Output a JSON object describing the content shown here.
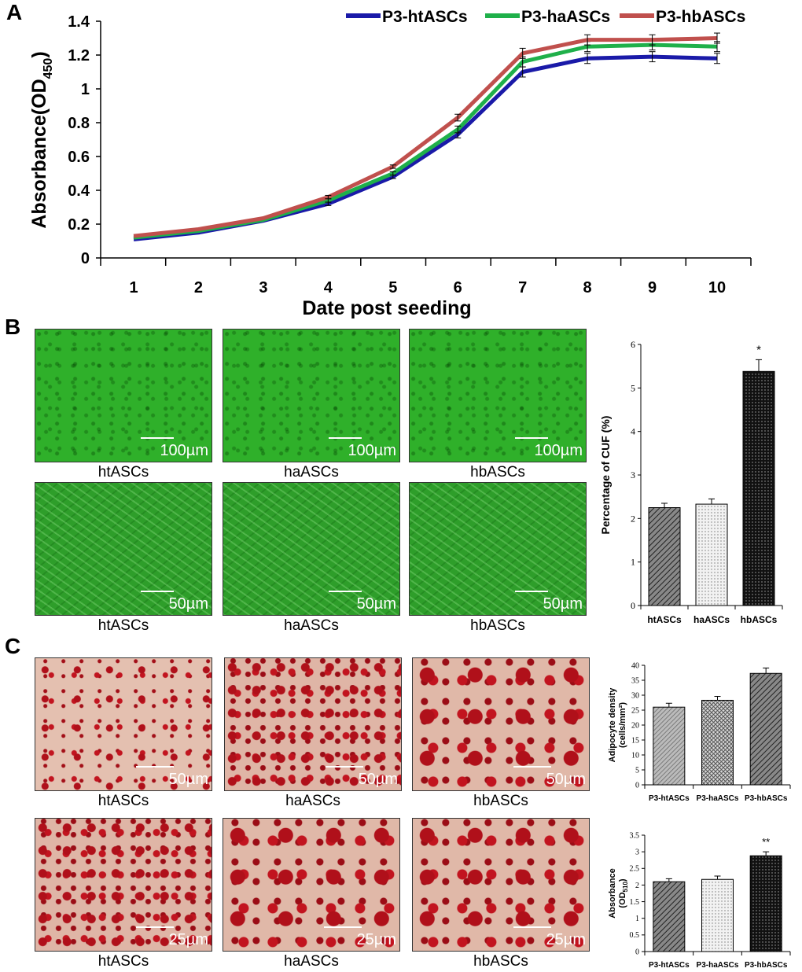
{
  "panel_labels": {
    "a": "A",
    "b": "B",
    "c": "C"
  },
  "chart_data": [
    {
      "type": "line",
      "x": [
        1,
        2,
        3,
        4,
        5,
        6,
        7,
        8,
        9,
        10
      ],
      "xlabel": "Date post seeding",
      "ylabel": "Absorbance(OD450)",
      "ylabel_main": "Absorbance(OD",
      "ylabel_sub": "450",
      "ylabel_close": ")",
      "ylim": [
        0,
        1.4
      ],
      "yticks": [
        "0",
        "0.2",
        "0.4",
        "0.6",
        "0.8",
        "1",
        "1.2",
        "1.4"
      ],
      "legend_position": "top",
      "grid": false,
      "series": [
        {
          "name": "P3-htASCs",
          "color": "#1a1aa8",
          "values": [
            0.11,
            0.15,
            0.22,
            0.32,
            0.48,
            0.73,
            1.1,
            1.18,
            1.19,
            1.18
          ],
          "errors": [
            0,
            0,
            0,
            0.01,
            0.01,
            0.02,
            0.03,
            0.03,
            0.03,
            0.03
          ]
        },
        {
          "name": "P3-haASCs",
          "color": "#1fb04a",
          "values": [
            0.12,
            0.16,
            0.225,
            0.34,
            0.5,
            0.76,
            1.16,
            1.25,
            1.26,
            1.25
          ],
          "errors": [
            0,
            0,
            0,
            0.01,
            0.01,
            0.02,
            0.03,
            0.03,
            0.03,
            0.03
          ]
        },
        {
          "name": "P3-hbASCs",
          "color": "#c0504d",
          "values": [
            0.13,
            0.17,
            0.235,
            0.36,
            0.54,
            0.83,
            1.21,
            1.29,
            1.29,
            1.3
          ],
          "errors": [
            0,
            0,
            0,
            0.01,
            0.01,
            0.02,
            0.03,
            0.03,
            0.03,
            0.03
          ]
        }
      ]
    },
    {
      "type": "bar",
      "categories": [
        "htASCs",
        "haASCs",
        "hbASCs"
      ],
      "values": [
        2.25,
        2.33,
        5.38
      ],
      "errors": [
        0.1,
        0.12,
        0.27
      ],
      "ylabel": "Percentage of CUF (%)",
      "ylim": [
        0,
        6
      ],
      "yticks": [
        "0",
        "1",
        "2",
        "3",
        "4",
        "5",
        "6"
      ],
      "annotations": [
        "",
        "",
        "*"
      ],
      "fills": [
        "hatch-dark",
        "dots-light",
        "dots-black"
      ]
    },
    {
      "type": "bar",
      "categories": [
        "P3-htASCs",
        "P3-haASCs",
        "P3-hbASCs"
      ],
      "values": [
        26,
        28.3,
        37.3
      ],
      "errors": [
        1.3,
        1.3,
        1.8
      ],
      "ylabel": "Adipocyte density (cells/mm²)",
      "ylabel_line1": "Adipocyte density",
      "ylabel_line2": "(cells/mm²)",
      "ylim": [
        0,
        40
      ],
      "yticks": [
        "0",
        "5",
        "10",
        "15",
        "20",
        "25",
        "30",
        "35",
        "40"
      ],
      "annotations": [
        "",
        "",
        ""
      ],
      "fills": [
        "hatch-light",
        "cross",
        "hatch-dark"
      ]
    },
    {
      "type": "bar",
      "categories": [
        "P3-htASCs",
        "P3-haASCs",
        "P3-hbASCs"
      ],
      "values": [
        2.1,
        2.17,
        2.88
      ],
      "errors": [
        0.09,
        0.1,
        0.12
      ],
      "ylabel": "Absorbance (OD510)",
      "ylabel_line1": "Absorbance",
      "ylabel_line2_main": "(OD",
      "ylabel_line2_sub": "510",
      "ylabel_line2_close": ")",
      "ylim": [
        0,
        3.5
      ],
      "yticks": [
        "0",
        "0.5",
        "1",
        "1.5",
        "2",
        "2.5",
        "3",
        "3.5"
      ],
      "annotations": [
        "",
        "",
        "**"
      ],
      "fills": [
        "hatch-dark",
        "dots-light",
        "dots-black"
      ]
    }
  ],
  "micrographs": {
    "green_row1": [
      {
        "caption": "htASCs",
        "scale": "100µm"
      },
      {
        "caption": "haASCs",
        "scale": "100µm"
      },
      {
        "caption": "hbASCs",
        "scale": "100µm"
      }
    ],
    "green_row2": [
      {
        "caption": "htASCs",
        "scale": "50µm"
      },
      {
        "caption": "haASCs",
        "scale": "50µm"
      },
      {
        "caption": "hbASCs",
        "scale": "50µm"
      }
    ],
    "oil_row1": [
      {
        "caption": "htASCs",
        "scale": "50µm"
      },
      {
        "caption": "haASCs",
        "scale": "50µm"
      },
      {
        "caption": "hbASCs",
        "scale": "50µm"
      }
    ],
    "oil_row2": [
      {
        "caption": "htASCs",
        "scale": "25µm"
      },
      {
        "caption": "haASCs",
        "scale": "25µm"
      },
      {
        "caption": "hbASCs",
        "scale": "25µm"
      }
    ]
  }
}
